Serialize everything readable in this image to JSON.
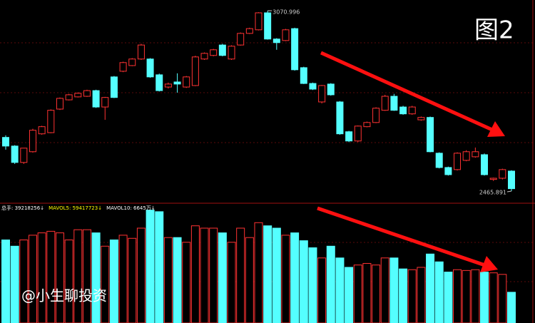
{
  "chart_data": {
    "type": "candlestick",
    "up_color": "#ff3232",
    "down_color": "#54ffff",
    "ylim": [
      2430,
      3107
    ],
    "high_label": "3070.996",
    "low_label": "2465.891",
    "annotation": "图2",
    "watermark": "@小生聊投资",
    "ohlc": [
      [
        2646,
        2653,
        2605,
        2617
      ],
      [
        2617,
        2620,
        2557,
        2562
      ],
      [
        2562,
        2610,
        2557,
        2610
      ],
      [
        2598,
        2675,
        2595,
        2670
      ],
      [
        2658,
        2685,
        2655,
        2682
      ],
      [
        2662,
        2740,
        2660,
        2737
      ],
      [
        2741,
        2780,
        2738,
        2777
      ],
      [
        2772,
        2792,
        2770,
        2789
      ],
      [
        2782,
        2797,
        2780,
        2794
      ],
      [
        2784,
        2806,
        2782,
        2803
      ],
      [
        2803,
        2806,
        2745,
        2748
      ],
      [
        2748,
        2782,
        2705,
        2780
      ],
      [
        2849,
        2852,
        2778,
        2780
      ],
      [
        2868,
        2900,
        2865,
        2897
      ],
      [
        2887,
        2912,
        2885,
        2909
      ],
      [
        2909,
        2960,
        2906,
        2956
      ],
      [
        2909,
        2912,
        2846,
        2849
      ],
      [
        2856,
        2860,
        2800,
        2803
      ],
      [
        2815,
        2830,
        2810,
        2825
      ],
      [
        2832,
        2861,
        2796,
        2825
      ],
      [
        2815,
        2852,
        2812,
        2849
      ],
      [
        2820,
        2920,
        2818,
        2916
      ],
      [
        2909,
        2931,
        2906,
        2928
      ],
      [
        2921,
        2943,
        2918,
        2940
      ],
      [
        2956,
        2960,
        2918,
        2921
      ],
      [
        2909,
        2955,
        2906,
        2952
      ],
      [
        2956,
        2998,
        2954,
        2995
      ],
      [
        2995,
        3014,
        2993,
        3011
      ],
      [
        3007,
        3066,
        3005,
        3064
      ],
      [
        3064,
        3070.996,
        2974,
        2976
      ],
      [
        2976,
        2979,
        2940,
        2964
      ],
      [
        2971,
        3010,
        2969,
        3007
      ],
      [
        3011,
        3014,
        2870,
        2873
      ],
      [
        2880,
        2883,
        2825,
        2827
      ],
      [
        2827,
        2830,
        2805,
        2808
      ],
      [
        2765,
        2822,
        2760,
        2820
      ],
      [
        2825,
        2828,
        2786,
        2789
      ],
      [
        2765,
        2768,
        2655,
        2658
      ],
      [
        2665,
        2668,
        2630,
        2634
      ],
      [
        2634,
        2686,
        2630,
        2684
      ],
      [
        2682,
        2699,
        2680,
        2696
      ],
      [
        2696,
        2747,
        2694,
        2744
      ],
      [
        2737,
        2789,
        2735,
        2784
      ],
      [
        2784,
        2792,
        2735,
        2737
      ],
      [
        2748,
        2752,
        2722,
        2725
      ],
      [
        2725,
        2752,
        2722,
        2748
      ],
      [
        2705,
        2716,
        2702,
        2713
      ],
      [
        2713,
        2716,
        2596,
        2598
      ],
      [
        2593,
        2596,
        2542,
        2545
      ],
      [
        2545,
        2548,
        2518,
        2521
      ],
      [
        2538,
        2596,
        2535,
        2593
      ],
      [
        2569,
        2603,
        2566,
        2598
      ],
      [
        2581,
        2612,
        2578,
        2598
      ],
      [
        2588,
        2592,
        2518,
        2521
      ],
      [
        2505,
        2511,
        2500,
        2509
      ],
      [
        2509,
        2541,
        2505,
        2538
      ],
      [
        2533,
        2536,
        2465.891,
        2474
      ]
    ],
    "volume": {
      "vlim": [
        0,
        151000000
      ],
      "header": [
        "总手: 39218256↓",
        "MAVOL5: 59417723↓",
        "MAVOL10: 6645万↓"
      ],
      "header_colors": [
        "#ffffff",
        "#ffff00",
        "#ffffff"
      ],
      "values": [
        106000000,
        98000000,
        106000000,
        112000000,
        115000000,
        117000000,
        115000000,
        106000000,
        119000000,
        119000000,
        115000000,
        98000000,
        106000000,
        112000000,
        108000000,
        121000000,
        144000000,
        142000000,
        109000000,
        109000000,
        103000000,
        124000000,
        121000000,
        121000000,
        115000000,
        103000000,
        121000000,
        109000000,
        128000000,
        124000000,
        121000000,
        112000000,
        115000000,
        105000000,
        96000000,
        83000000,
        98000000,
        83000000,
        71000000,
        74000000,
        76000000,
        74000000,
        83000000,
        83000000,
        69000000,
        68000000,
        71000000,
        88000000,
        78000000,
        65000000,
        68000000,
        67000000,
        68000000,
        65000000,
        64000000,
        62000000,
        39218256
      ]
    }
  }
}
